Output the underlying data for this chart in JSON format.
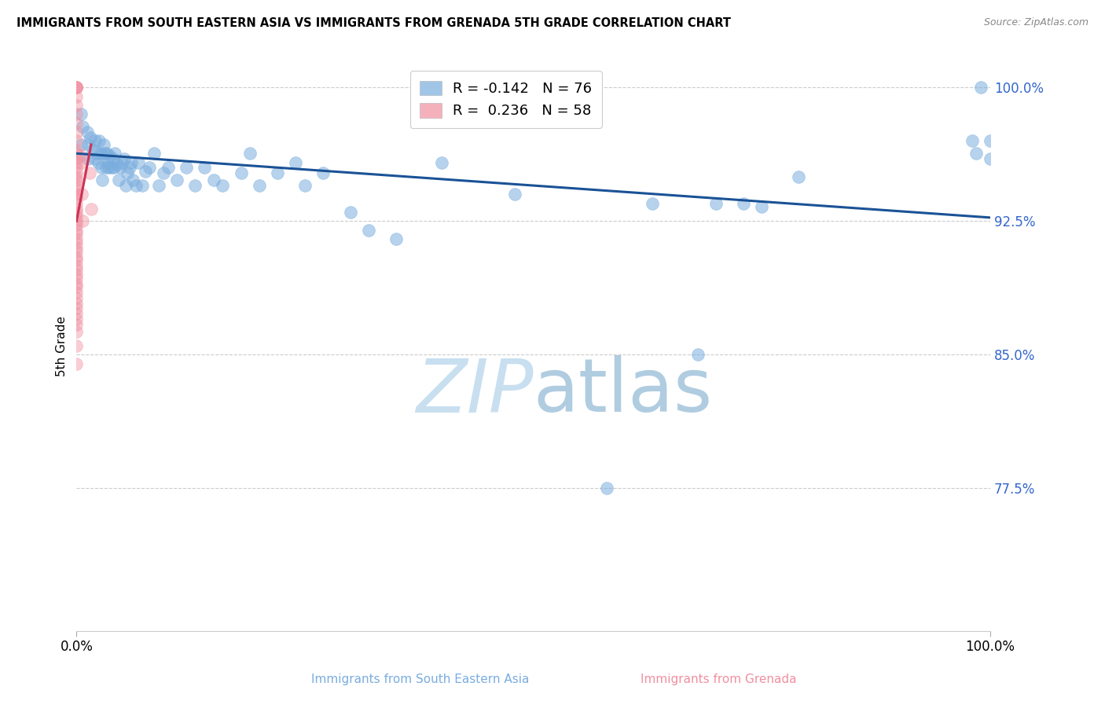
{
  "title": "IMMIGRANTS FROM SOUTH EASTERN ASIA VS IMMIGRANTS FROM GRENADA 5TH GRADE CORRELATION CHART",
  "source": "Source: ZipAtlas.com",
  "ylabel": "5th Grade",
  "ytick_values": [
    1.0,
    0.925,
    0.85,
    0.775
  ],
  "xlim": [
    0.0,
    1.0
  ],
  "ylim": [
    0.695,
    1.015
  ],
  "legend_blue_r": "-0.142",
  "legend_blue_n": "76",
  "legend_pink_r": "0.236",
  "legend_pink_n": "58",
  "blue_color": "#7aadde",
  "pink_color": "#f090a0",
  "blue_line_color": "#1a5296",
  "pink_line_color": "#cc3355",
  "ytick_color": "#3366cc",
  "watermark_color": "#c8dff0",
  "blue_scatter_x": [
    0.005,
    0.005,
    0.007,
    0.012,
    0.013,
    0.013,
    0.015,
    0.018,
    0.02,
    0.02,
    0.022,
    0.024,
    0.025,
    0.026,
    0.027,
    0.028,
    0.03,
    0.031,
    0.032,
    0.033,
    0.034,
    0.035,
    0.036,
    0.038,
    0.04,
    0.041,
    0.042,
    0.044,
    0.046,
    0.048,
    0.05,
    0.052,
    0.054,
    0.056,
    0.058,
    0.06,
    0.062,
    0.065,
    0.068,
    0.072,
    0.075,
    0.08,
    0.085,
    0.09,
    0.095,
    0.1,
    0.11,
    0.12,
    0.13,
    0.14,
    0.15,
    0.16,
    0.18,
    0.19,
    0.2,
    0.22,
    0.24,
    0.25,
    0.27,
    0.3,
    0.32,
    0.35,
    0.4,
    0.48,
    0.58,
    0.63,
    0.68,
    0.7,
    0.73,
    0.75,
    0.79,
    0.98,
    0.985,
    0.99,
    1.0,
    1.0
  ],
  "blue_scatter_y": [
    0.968,
    0.985,
    0.978,
    0.975,
    0.968,
    0.96,
    0.972,
    0.965,
    0.97,
    0.96,
    0.963,
    0.958,
    0.97,
    0.963,
    0.955,
    0.948,
    0.968,
    0.963,
    0.955,
    0.963,
    0.958,
    0.955,
    0.962,
    0.955,
    0.96,
    0.955,
    0.963,
    0.957,
    0.948,
    0.955,
    0.958,
    0.96,
    0.945,
    0.952,
    0.955,
    0.958,
    0.948,
    0.945,
    0.958,
    0.945,
    0.953,
    0.955,
    0.963,
    0.945,
    0.952,
    0.955,
    0.948,
    0.955,
    0.945,
    0.955,
    0.948,
    0.945,
    0.952,
    0.963,
    0.945,
    0.952,
    0.958,
    0.945,
    0.952,
    0.93,
    0.92,
    0.915,
    0.958,
    0.94,
    0.775,
    0.935,
    0.85,
    0.935,
    0.935,
    0.933,
    0.95,
    0.97,
    0.963,
    1.0,
    0.97,
    0.96
  ],
  "pink_scatter_x": [
    0.0,
    0.0,
    0.0,
    0.0,
    0.0,
    0.0,
    0.0,
    0.0,
    0.0,
    0.0,
    0.0,
    0.0,
    0.0,
    0.0,
    0.0,
    0.0,
    0.0,
    0.0,
    0.0,
    0.0,
    0.0,
    0.0,
    0.0,
    0.0,
    0.0,
    0.0,
    0.0,
    0.0,
    0.0,
    0.0,
    0.0,
    0.0,
    0.0,
    0.0,
    0.0,
    0.0,
    0.0,
    0.0,
    0.0,
    0.0,
    0.0,
    0.0,
    0.0,
    0.0,
    0.0,
    0.0,
    0.0,
    0.0,
    0.0,
    0.0,
    0.0,
    0.0,
    0.004,
    0.005,
    0.006,
    0.007,
    0.014,
    0.016
  ],
  "pink_scatter_y": [
    1.0,
    1.0,
    1.0,
    1.0,
    0.995,
    0.99,
    0.985,
    0.98,
    0.975,
    0.97,
    0.965,
    0.963,
    0.96,
    0.958,
    0.955,
    0.952,
    0.95,
    0.948,
    0.945,
    0.943,
    0.94,
    0.938,
    0.935,
    0.932,
    0.93,
    0.928,
    0.925,
    0.923,
    0.92,
    0.918,
    0.915,
    0.913,
    0.91,
    0.908,
    0.905,
    0.903,
    0.9,
    0.898,
    0.895,
    0.893,
    0.89,
    0.888,
    0.885,
    0.882,
    0.879,
    0.876,
    0.873,
    0.87,
    0.867,
    0.863,
    0.855,
    0.845,
    0.962,
    0.958,
    0.94,
    0.925,
    0.952,
    0.932
  ],
  "blue_trendline": [
    0.0,
    1.0,
    0.963,
    0.927
  ],
  "pink_trendline": [
    0.0,
    0.016,
    0.925,
    0.968
  ]
}
